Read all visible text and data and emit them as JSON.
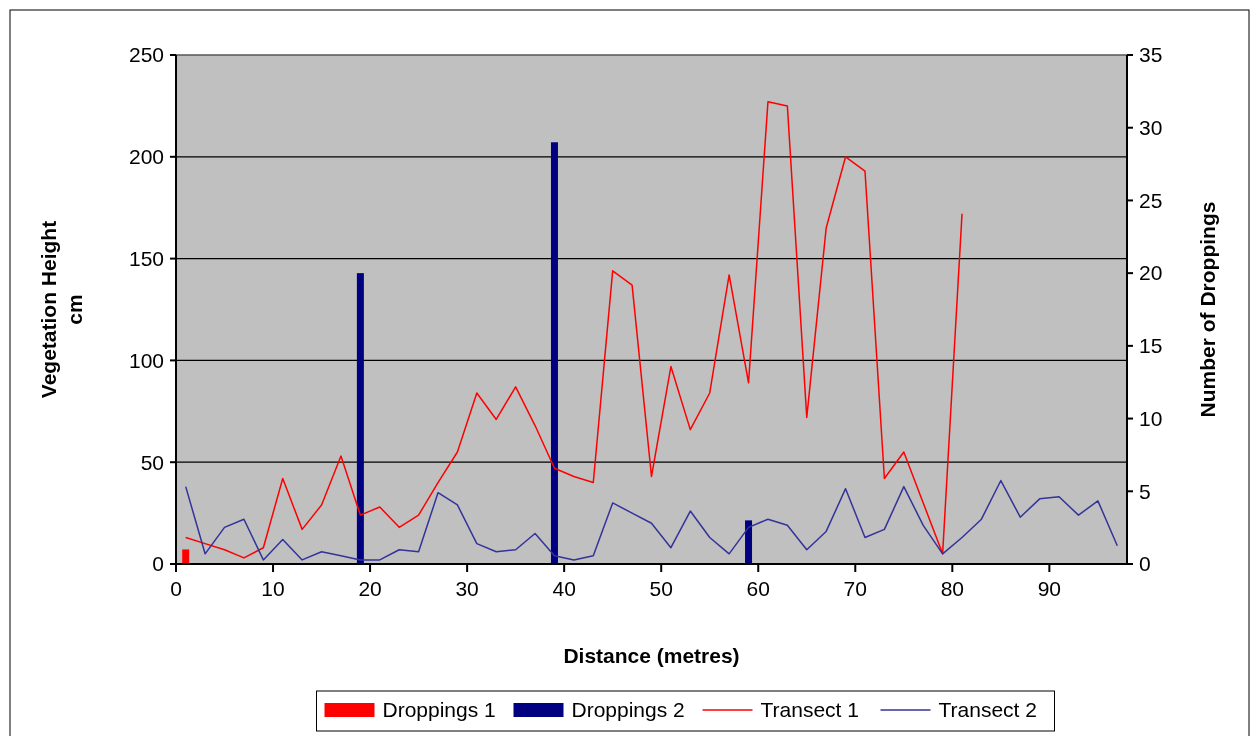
{
  "chart_data": {
    "type": "line",
    "xlabel": "Distance (metres)",
    "ylabel": "Vegetation Height cm",
    "y2label": "Number of Droppings",
    "xlim": [
      0,
      98
    ],
    "xticks": [
      0,
      10,
      20,
      30,
      40,
      50,
      60,
      70,
      80,
      90
    ],
    "ylim": [
      0,
      250
    ],
    "yticks": [
      0,
      50,
      100,
      150,
      200,
      250
    ],
    "y2lim": [
      0,
      35
    ],
    "y2ticks": [
      0,
      5,
      10,
      15,
      20,
      25,
      30,
      35
    ],
    "grid": "y",
    "legend": "bottom",
    "series": [
      {
        "name": "Droppings 1",
        "type": "bar",
        "axis": "y2",
        "color": "#ff0000",
        "x": [
          1
        ],
        "values": [
          1
        ]
      },
      {
        "name": "Droppings 2",
        "type": "bar",
        "axis": "y2",
        "color": "#000080",
        "x": [
          19,
          39,
          59
        ],
        "values": [
          20,
          29,
          3
        ]
      },
      {
        "name": "Transect 1",
        "color": "#ff0000",
        "x": [
          1,
          3,
          5,
          7,
          9,
          11,
          13,
          15,
          17,
          19,
          21,
          23,
          25,
          27,
          29,
          31,
          33,
          35,
          37,
          39,
          41,
          43,
          45,
          47,
          49,
          51,
          53,
          55,
          57,
          59,
          61,
          63,
          65,
          67,
          69,
          71,
          73,
          75,
          77,
          79,
          81
        ],
        "values": [
          13,
          10,
          7,
          3,
          8,
          42,
          17,
          29,
          53,
          24,
          28,
          18,
          24,
          40,
          55,
          84,
          71,
          87,
          68,
          47,
          43,
          40,
          144,
          137,
          43,
          97,
          66,
          84,
          142,
          89,
          227,
          225,
          72,
          165,
          200,
          193,
          42,
          55,
          30,
          5,
          172
        ]
      },
      {
        "name": "Transect 2",
        "color": "#333399",
        "x": [
          1,
          3,
          5,
          7,
          9,
          11,
          13,
          15,
          17,
          19,
          21,
          23,
          25,
          27,
          29,
          31,
          33,
          35,
          37,
          39,
          41,
          43,
          45,
          47,
          49,
          51,
          53,
          55,
          57,
          59,
          61,
          63,
          65,
          67,
          69,
          71,
          73,
          75,
          77,
          79,
          81,
          83,
          85,
          87,
          89,
          91,
          93,
          95,
          97
        ],
        "values": [
          38,
          5,
          18,
          22,
          2,
          12,
          2,
          6,
          4,
          2,
          2,
          7,
          6,
          35,
          29,
          10,
          6,
          7,
          15,
          4,
          2,
          4,
          30,
          25,
          20,
          8,
          26,
          13,
          5,
          18,
          22,
          19,
          7,
          16,
          37,
          13,
          17,
          38,
          19,
          5,
          13,
          22,
          41,
          23,
          32,
          33,
          24,
          31,
          9
        ]
      }
    ]
  }
}
